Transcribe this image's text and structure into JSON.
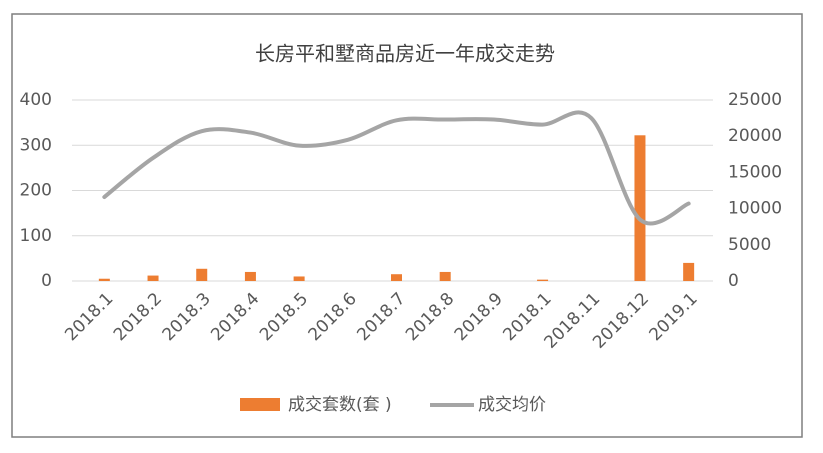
{
  "chart_data": {
    "type": "bar-line",
    "title": "长房平和墅商品房近一年成交走势",
    "categories": [
      "2018.1",
      "2018.2",
      "2018.3",
      "2018.4",
      "2018.5",
      "2018.6",
      "2018.7",
      "2018.8",
      "2018.9",
      "2018.1",
      "2018.11",
      "2018.12",
      "2019.1"
    ],
    "series": [
      {
        "name": "成交套数(套 )",
        "type": "bar",
        "color": "#ED7D31",
        "values": [
          5,
          12,
          27,
          20,
          10,
          0,
          15,
          20,
          0,
          3,
          0,
          322,
          40
        ]
      },
      {
        "name": "成交均价",
        "type": "line",
        "axis": "y2",
        "color": "#A5A5A5",
        "values": [
          11600,
          17000,
          20700,
          20500,
          18700,
          19500,
          22200,
          22300,
          22300,
          21600,
          22500,
          8500,
          10700
        ]
      }
    ],
    "ylim": [
      0,
      400
    ],
    "yticks": [
      0,
      100,
      200,
      300,
      400
    ],
    "y2lim": [
      0,
      25000
    ],
    "y2ticks": [
      0,
      5000,
      10000,
      15000,
      20000,
      25000
    ],
    "grid": true,
    "legend": "bottom"
  }
}
